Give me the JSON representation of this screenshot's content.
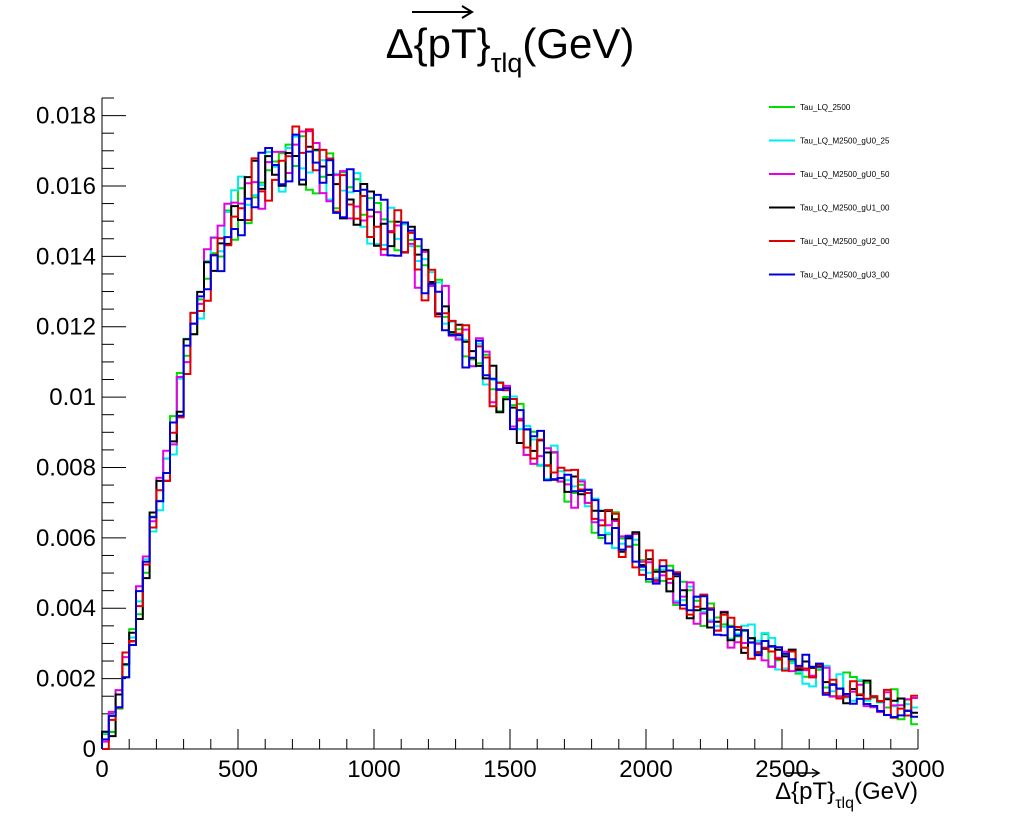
{
  "chart_data": {
    "type": "line",
    "title": "Δ{pT}τlq(GeV)",
    "title_parts": {
      "main": "Δ{pT}",
      "sub": "τlq",
      "tail": "(GeV)"
    },
    "xlabel": "Δ{pT}τlq(GeV)",
    "xlabel_parts": {
      "main": "Δ{pT}",
      "sub": "τlq",
      "tail": "(GeV)"
    },
    "ylabel": "",
    "xlim": [
      0,
      3000
    ],
    "ylim": [
      0,
      0.0185
    ],
    "x_ticks": [
      0,
      500,
      1000,
      1500,
      2000,
      2500,
      3000
    ],
    "x_tick_labels": [
      "0",
      "500",
      "1000",
      "1500",
      "2000",
      "2500",
      "3000"
    ],
    "y_ticks": [
      0,
      0.002,
      0.004,
      0.006,
      0.008,
      0.01,
      0.012,
      0.014,
      0.016,
      0.018
    ],
    "y_tick_labels": [
      "0",
      "0.002",
      "0.004",
      "0.006",
      "0.008",
      "0.01",
      "0.012",
      "0.014",
      "0.016",
      "0.018"
    ],
    "grid": false,
    "legend_position": "top-right",
    "bin_width": 25,
    "shape_points": [
      [
        0,
        0
      ],
      [
        25,
        0.0002
      ],
      [
        50,
        0.0011
      ],
      [
        75,
        0.0019
      ],
      [
        100,
        0.0027
      ],
      [
        125,
        0.0036
      ],
      [
        150,
        0.0047
      ],
      [
        175,
        0.0057
      ],
      [
        200,
        0.0068
      ],
      [
        225,
        0.0077
      ],
      [
        250,
        0.0085
      ],
      [
        275,
        0.0095
      ],
      [
        300,
        0.0106
      ],
      [
        325,
        0.0117
      ],
      [
        350,
        0.0125
      ],
      [
        375,
        0.0132
      ],
      [
        400,
        0.0137
      ],
      [
        425,
        0.0142
      ],
      [
        450,
        0.0146
      ],
      [
        500,
        0.0153
      ],
      [
        550,
        0.0159
      ],
      [
        600,
        0.0163
      ],
      [
        650,
        0.0166
      ],
      [
        700,
        0.0168
      ],
      [
        750,
        0.0168
      ],
      [
        800,
        0.0165
      ],
      [
        850,
        0.0162
      ],
      [
        900,
        0.0158
      ],
      [
        950,
        0.0155
      ],
      [
        1000,
        0.0151
      ],
      [
        1050,
        0.0148
      ],
      [
        1100,
        0.0144
      ],
      [
        1150,
        0.0139
      ],
      [
        1200,
        0.0134
      ],
      [
        1250,
        0.0128
      ],
      [
        1300,
        0.0121
      ],
      [
        1350,
        0.0114
      ],
      [
        1400,
        0.0108
      ],
      [
        1450,
        0.0102
      ],
      [
        1500,
        0.0096
      ],
      [
        1550,
        0.0091
      ],
      [
        1600,
        0.0086
      ],
      [
        1650,
        0.0081
      ],
      [
        1700,
        0.0077
      ],
      [
        1750,
        0.0072
      ],
      [
        1800,
        0.0068
      ],
      [
        1850,
        0.0064
      ],
      [
        1900,
        0.0061
      ],
      [
        1950,
        0.0057
      ],
      [
        2000,
        0.0053
      ],
      [
        2050,
        0.0049
      ],
      [
        2100,
        0.0046
      ],
      [
        2150,
        0.0043
      ],
      [
        2200,
        0.004
      ],
      [
        2250,
        0.0037
      ],
      [
        2300,
        0.0034
      ],
      [
        2350,
        0.0032
      ],
      [
        2400,
        0.003
      ],
      [
        2450,
        0.0028
      ],
      [
        2500,
        0.0026
      ],
      [
        2550,
        0.0024
      ],
      [
        2600,
        0.0022
      ],
      [
        2650,
        0.002
      ],
      [
        2700,
        0.0019
      ],
      [
        2750,
        0.0017
      ],
      [
        2800,
        0.0016
      ],
      [
        2850,
        0.0015
      ],
      [
        2900,
        0.0013
      ],
      [
        2950,
        0.0012
      ],
      [
        3000,
        0.0011
      ]
    ],
    "series": [
      {
        "name": "Tau_LQ_2500",
        "color": "#00dd00",
        "seed": 11
      },
      {
        "name": "Tau_LQ_M2500_gU0_25",
        "color": "#00eeee",
        "seed": 23
      },
      {
        "name": "Tau_LQ_M2500_gU0_50",
        "color": "#e600e6",
        "seed": 37
      },
      {
        "name": "Tau_LQ_M2500_gU1_00",
        "color": "#000000",
        "seed": 41
      },
      {
        "name": "Tau_LQ_M2500_gU2_00",
        "color": "#e00000",
        "seed": 53
      },
      {
        "name": "Tau_LQ_M2500_gU3_00",
        "color": "#0000dd",
        "seed": 67
      }
    ]
  }
}
